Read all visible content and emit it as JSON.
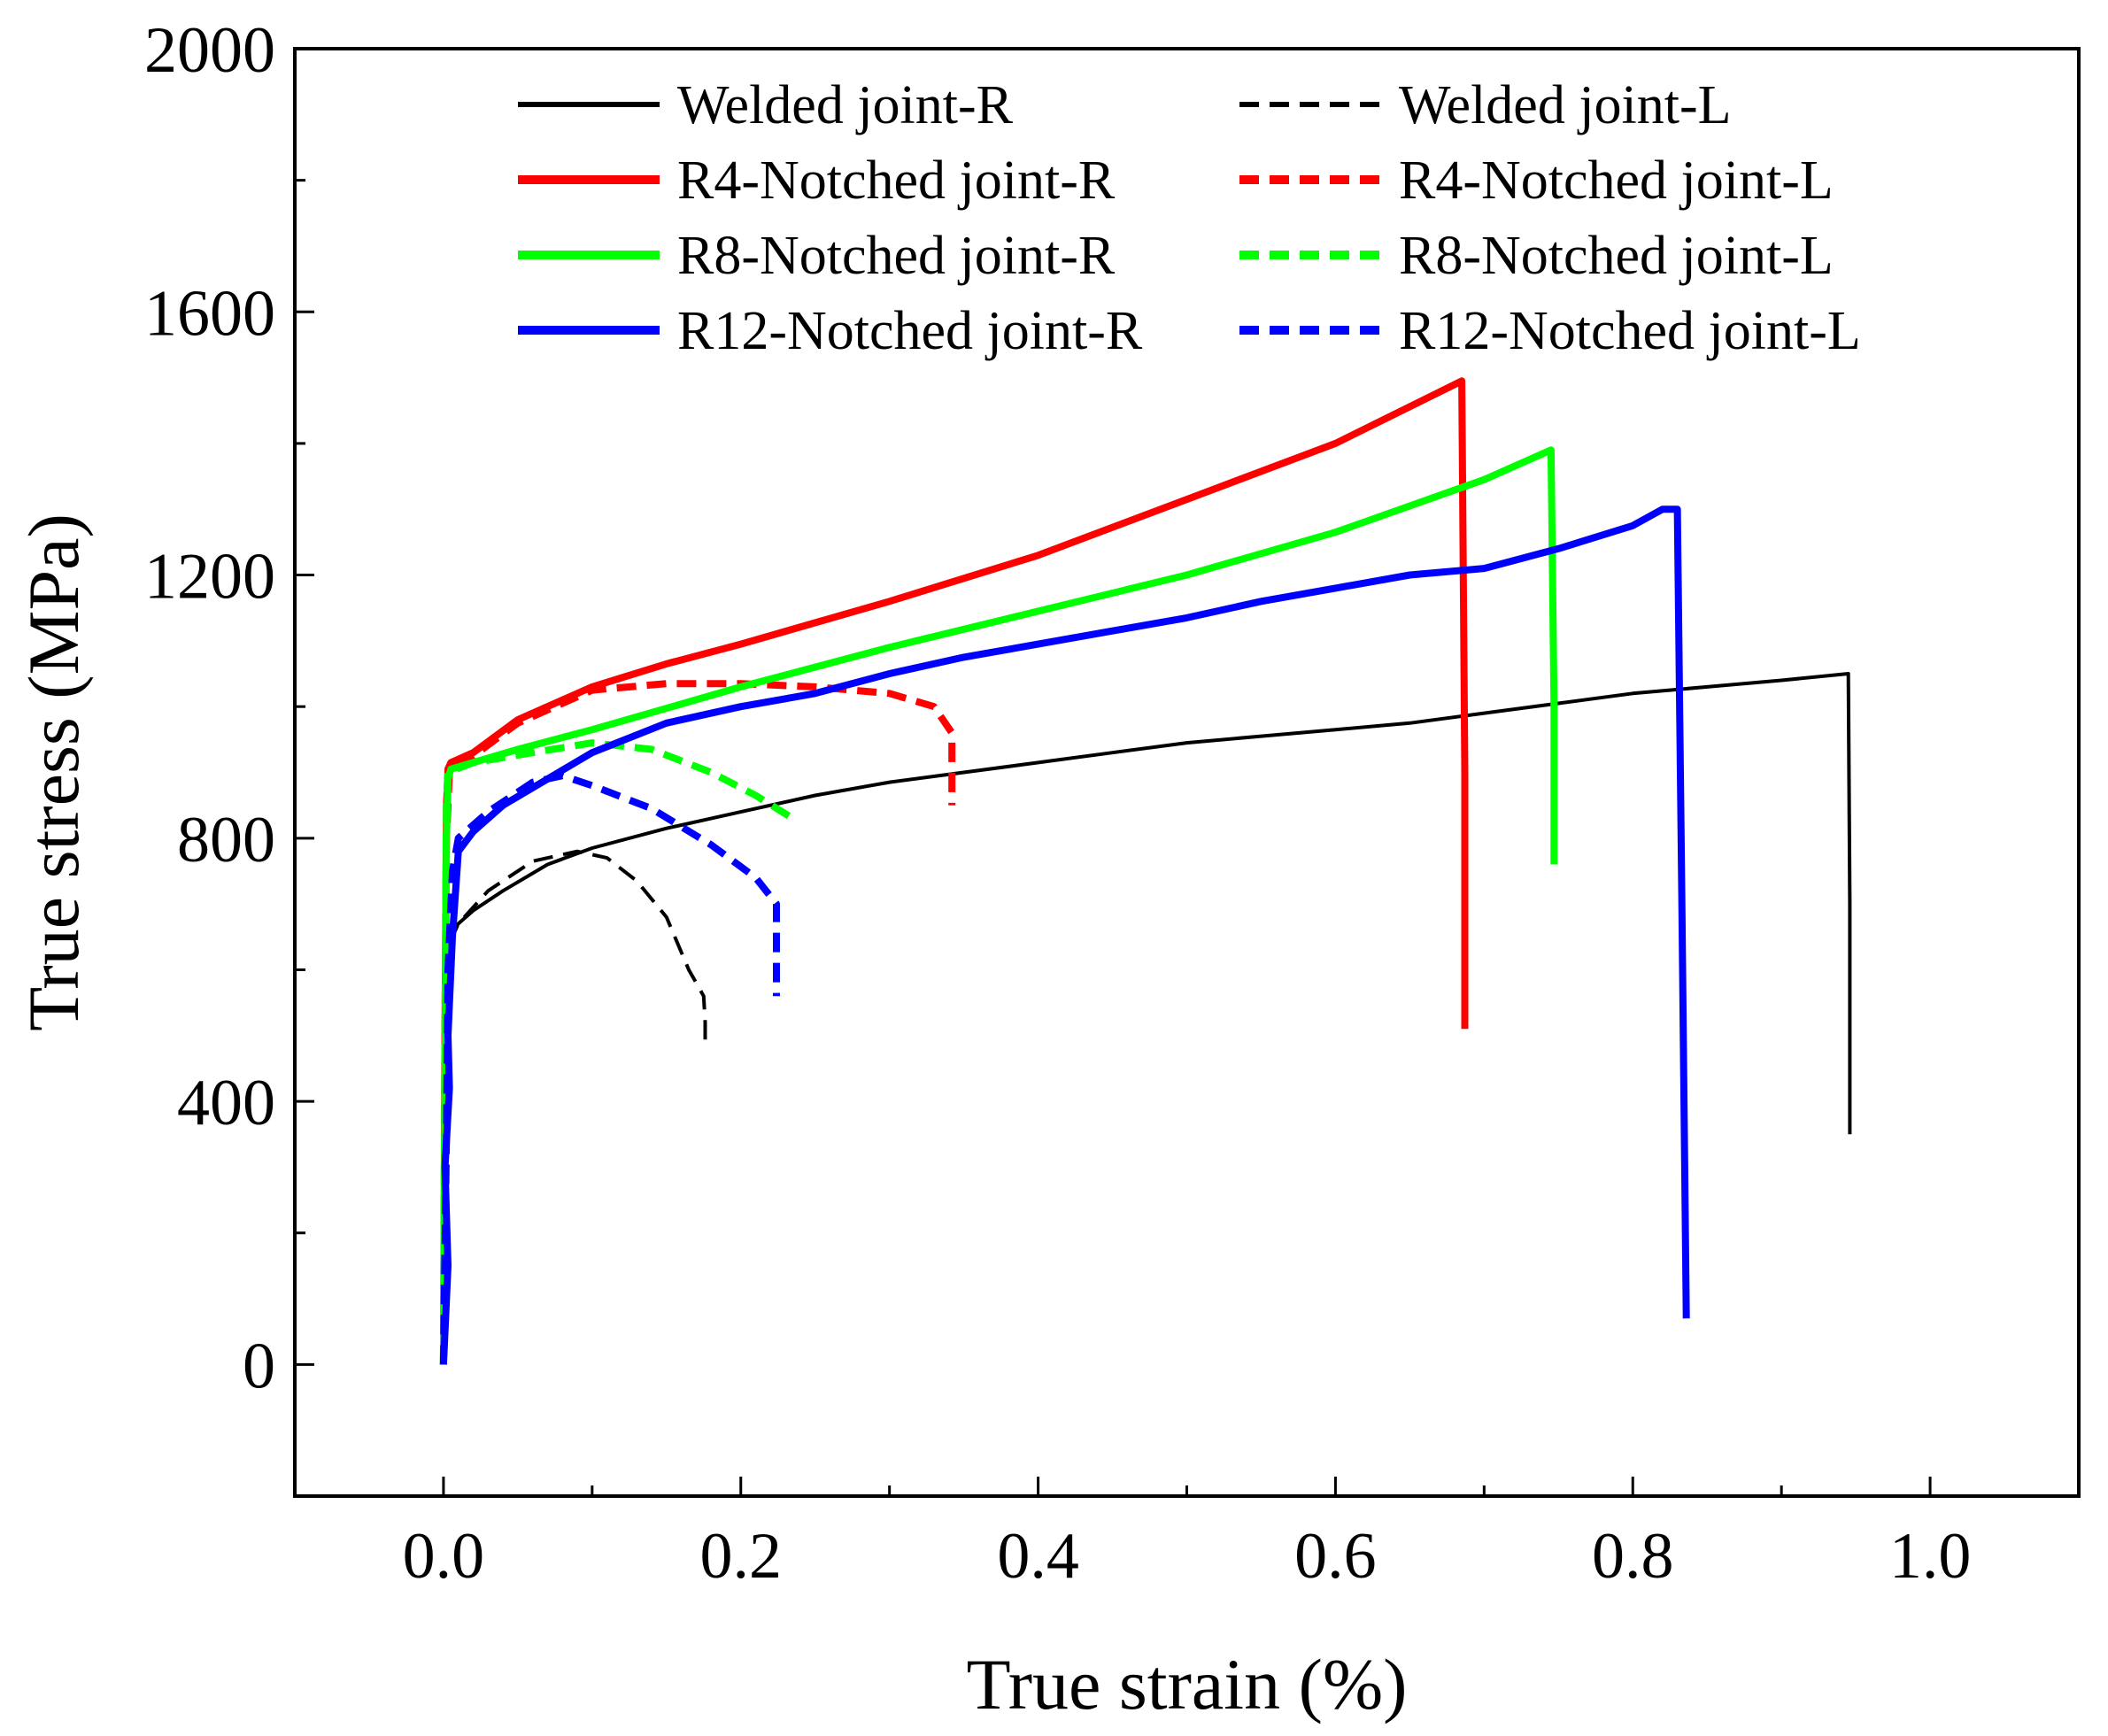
{
  "chart_data": {
    "type": "line",
    "title": "",
    "xlabel": "True strain (%)",
    "ylabel": "True stress (MPa)",
    "xlim": [
      -0.1,
      1.1
    ],
    "ylim": [
      -200,
      2000
    ],
    "x_ticks": [
      0.0,
      0.2,
      0.4,
      0.6,
      0.8,
      1.0
    ],
    "x_tick_labels": [
      "0.0",
      "0.2",
      "0.4",
      "0.6",
      "0.8",
      "1.0"
    ],
    "y_ticks": [
      0,
      400,
      800,
      1200,
      1600,
      2000
    ],
    "y_tick_labels": [
      "0",
      "400",
      "800",
      "1200",
      "1600",
      "2000"
    ],
    "grid": false,
    "legend_position": "top",
    "series": [
      {
        "name": "Welded joint-R",
        "color": "#000000",
        "style": "solid",
        "x": [
          0,
          0.001,
          0.002,
          0.004,
          0.006,
          0.01,
          0.02,
          0.04,
          0.07,
          0.1,
          0.15,
          0.2,
          0.25,
          0.3,
          0.35,
          0.4,
          0.45,
          0.5,
          0.55,
          0.6,
          0.65,
          0.7,
          0.75,
          0.8,
          0.85,
          0.9,
          0.945,
          0.946,
          0.946
        ],
        "y": [
          0,
          300,
          500,
          640,
          660,
          670,
          690,
          720,
          760,
          785,
          815,
          840,
          865,
          885,
          900,
          915,
          930,
          945,
          955,
          965,
          975,
          990,
          1005,
          1020,
          1030,
          1040,
          1050,
          700,
          350
        ]
      },
      {
        "name": "Welded joint-L",
        "color": "#000000",
        "style": "dashed",
        "x": [
          0,
          0.002,
          0.004,
          0.01,
          0.03,
          0.06,
          0.09,
          0.11,
          0.13,
          0.15,
          0.165,
          0.175,
          0.176,
          0.176
        ],
        "y": [
          0,
          400,
          640,
          670,
          720,
          765,
          780,
          770,
          735,
          680,
          600,
          560,
          520,
          480
        ]
      },
      {
        "name": "R4-Notched joint-R",
        "color": "#ff0000",
        "style": "solid",
        "x": [
          0,
          0.001,
          0.002,
          0.003,
          0.005,
          0.02,
          0.05,
          0.1,
          0.15,
          0.2,
          0.3,
          0.4,
          0.5,
          0.6,
          0.685,
          0.687,
          0.687
        ],
        "y": [
          0,
          500,
          850,
          905,
          915,
          930,
          980,
          1030,
          1065,
          1095,
          1160,
          1230,
          1315,
          1400,
          1495,
          900,
          510
        ]
      },
      {
        "name": "R4-Notched joint-L",
        "color": "#ff0000",
        "style": "dashed",
        "x": [
          0,
          0.001,
          0.002,
          0.004,
          0.02,
          0.05,
          0.1,
          0.15,
          0.2,
          0.25,
          0.3,
          0.33,
          0.342,
          0.342,
          0.342
        ],
        "y": [
          0,
          500,
          800,
          900,
          925,
          975,
          1025,
          1035,
          1035,
          1030,
          1020,
          1000,
          960,
          900,
          850
        ]
      },
      {
        "name": "R8-Notched joint-R",
        "color": "#00ff00",
        "style": "solid",
        "x": [
          0,
          0.001,
          0.002,
          0.003,
          0.005,
          0.02,
          0.05,
          0.1,
          0.2,
          0.3,
          0.4,
          0.5,
          0.6,
          0.7,
          0.745,
          0.747,
          0.747
        ],
        "y": [
          0,
          400,
          800,
          890,
          905,
          915,
          935,
          965,
          1030,
          1090,
          1145,
          1200,
          1265,
          1345,
          1390,
          1000,
          760
        ]
      },
      {
        "name": "R8-Notched joint-L",
        "color": "#00ff00",
        "style": "dashed",
        "x": [
          0,
          0.001,
          0.002,
          0.003,
          0.02,
          0.06,
          0.1,
          0.14,
          0.18,
          0.21,
          0.235
        ],
        "y": [
          0,
          500,
          850,
          900,
          915,
          930,
          945,
          935,
          900,
          865,
          830
        ]
      },
      {
        "name": "R12-Notched joint-R",
        "color": "#0000ff",
        "style": "solid",
        "x": [
          0,
          0.003,
          0.001,
          0.004,
          0.003,
          0.006,
          0.01,
          0.02,
          0.04,
          0.07,
          0.1,
          0.15,
          0.2,
          0.25,
          0.3,
          0.35,
          0.4,
          0.45,
          0.5,
          0.55,
          0.6,
          0.65,
          0.7,
          0.75,
          0.8,
          0.82,
          0.83,
          0.833,
          0.836
        ],
        "y": [
          0,
          150,
          300,
          420,
          500,
          650,
          780,
          810,
          850,
          890,
          930,
          975,
          1000,
          1020,
          1050,
          1075,
          1095,
          1115,
          1135,
          1160,
          1180,
          1200,
          1210,
          1240,
          1275,
          1300,
          1300,
          700,
          70
        ]
      },
      {
        "name": "R12-Notched joint-L",
        "color": "#0000ff",
        "style": "dashed",
        "x": [
          0,
          0.002,
          0.003,
          0.006,
          0.01,
          0.03,
          0.06,
          0.08,
          0.1,
          0.14,
          0.18,
          0.21,
          0.224,
          0.224,
          0.224
        ],
        "y": [
          0,
          350,
          600,
          750,
          800,
          840,
          885,
          895,
          880,
          845,
          790,
          740,
          700,
          620,
          560
        ]
      }
    ]
  }
}
